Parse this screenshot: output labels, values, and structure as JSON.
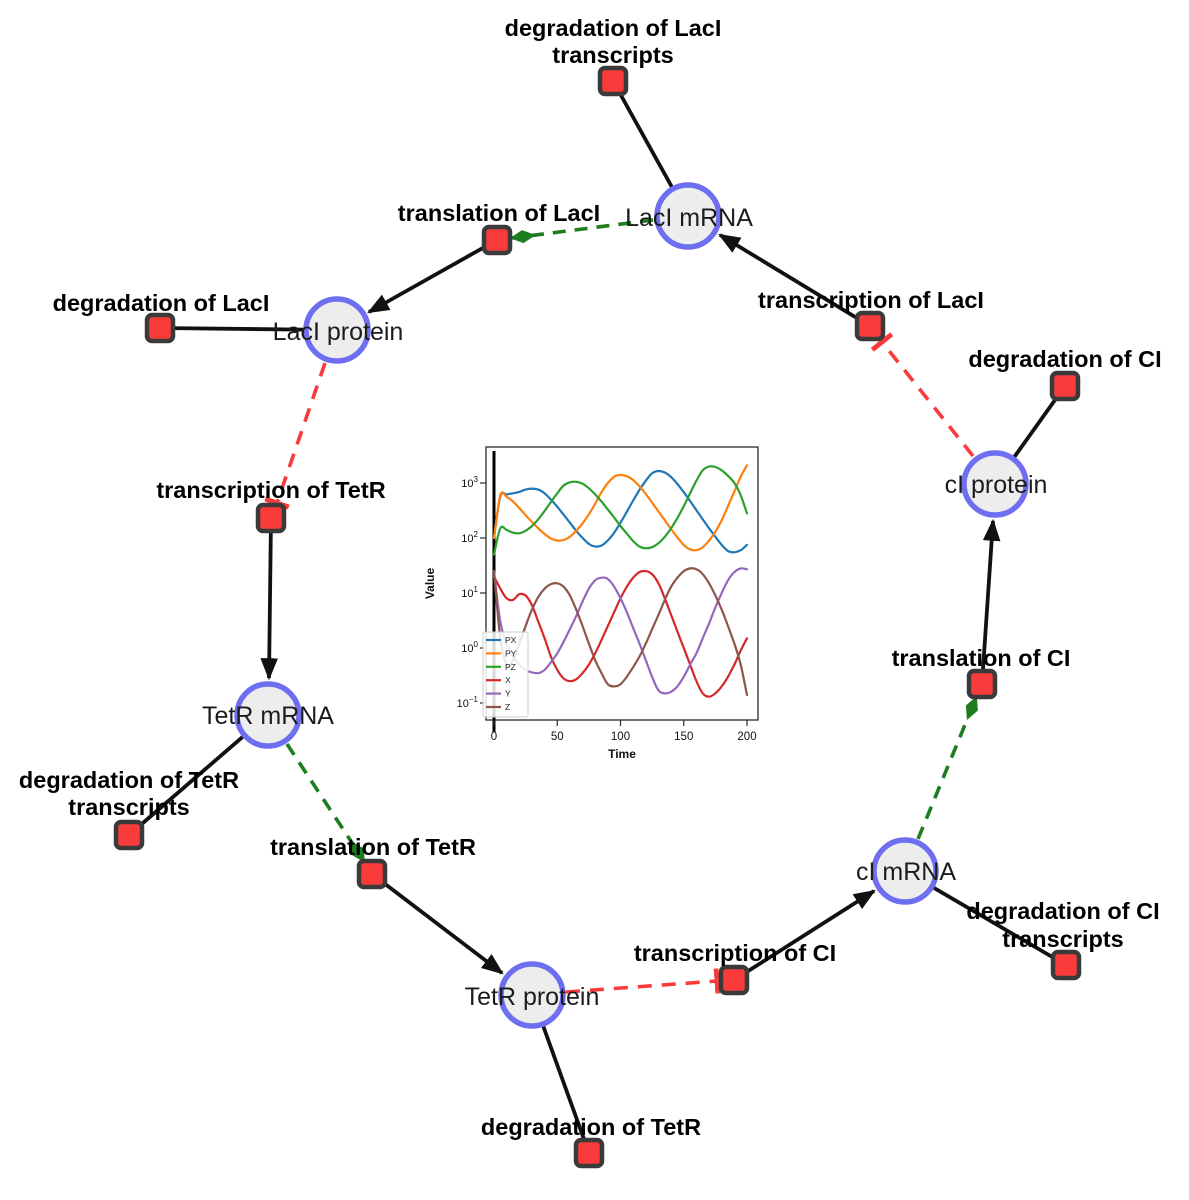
{
  "diagram": {
    "species": {
      "laci_mrna": "LacI mRNA",
      "laci_protein": "LacI protein",
      "tetr_mrna": "TetR mRNA",
      "tetr_protein": "TetR protein",
      "ci_mrna": "cI mRNA",
      "ci_protein": "cI protein"
    },
    "reactions": {
      "deg_laci_tx_1": "degradation of LacI",
      "deg_laci_tx_2": "transcripts",
      "translation_laci": "translation of LacI",
      "transcription_laci": "transcription of LacI",
      "deg_laci": "degradation of LacI",
      "deg_ci": "degradation of CI",
      "transcription_tetr": "transcription of TetR",
      "translation_ci": "translation of CI",
      "deg_tetr_tx_1": "degradation of TetR",
      "deg_tetr_tx_2": "transcripts",
      "translation_tetr": "translation of TetR",
      "deg_ci_tx_1": "degradation of CI",
      "deg_ci_tx_2": "transcripts",
      "transcription_ci": "transcription of CI",
      "deg_tetr": "degradation of TetR"
    },
    "colors": {
      "species_fill": "#ededed",
      "species_border": "#6e6ef0",
      "reaction_fill": "#f93a3a",
      "reaction_border": "#3a3a3a",
      "edge": "#111111",
      "activation": "#1e7d1e",
      "inhibition": "#f93a3a",
      "background": "#ffffff"
    }
  },
  "chart_data": {
    "type": "line",
    "title": "",
    "xlabel": "Time",
    "ylabel": "Value",
    "x_ticks": [
      0,
      50,
      100,
      150,
      200
    ],
    "xlim": [
      0,
      200
    ],
    "y_scale": "log",
    "y_tick_exponents": [
      -1,
      0,
      1,
      2,
      3
    ],
    "ylim": [
      0.1,
      4500
    ],
    "legend_position": "lower left",
    "grid": false,
    "event_line_x": 0,
    "x": [
      0,
      5,
      10,
      15,
      20,
      25,
      30,
      35,
      40,
      45,
      50,
      55,
      60,
      65,
      70,
      75,
      80,
      85,
      90,
      95,
      100,
      105,
      110,
      115,
      120,
      125,
      130,
      135,
      140,
      145,
      150,
      155,
      160,
      165,
      170,
      175,
      180,
      185,
      190,
      195,
      200
    ],
    "series": [
      {
        "name": "PX",
        "color": "#1f77b4",
        "values": [
          100,
          570,
          620,
          650,
          690,
          760,
          790,
          760,
          650,
          500,
          370,
          265,
          190,
          135,
          100,
          78,
          70,
          73,
          90,
          125,
          190,
          300,
          480,
          750,
          1100,
          1500,
          1650,
          1550,
          1280,
          960,
          680,
          470,
          320,
          220,
          150,
          105,
          75,
          58,
          55,
          60,
          75
        ]
      },
      {
        "name": "PY",
        "color": "#ff7f0e",
        "values": [
          100,
          600,
          560,
          460,
          350,
          260,
          195,
          150,
          118,
          98,
          90,
          92,
          105,
          135,
          185,
          270,
          420,
          680,
          1000,
          1300,
          1400,
          1330,
          1130,
          870,
          630,
          440,
          305,
          210,
          145,
          103,
          75,
          62,
          60,
          68,
          90,
          130,
          210,
          380,
          700,
          1300,
          2100
        ]
      },
      {
        "name": "PZ",
        "color": "#2ca02c",
        "values": [
          50,
          150,
          140,
          125,
          122,
          135,
          165,
          220,
          310,
          450,
          650,
          900,
          1030,
          1050,
          970,
          800,
          620,
          460,
          330,
          235,
          165,
          120,
          88,
          70,
          65,
          68,
          80,
          105,
          150,
          230,
          380,
          650,
          1100,
          1700,
          2000,
          1950,
          1700,
          1350,
          1000,
          600,
          280
        ]
      },
      {
        "name": "X",
        "color": "#d62728",
        "values": [
          20,
          12,
          8,
          7.5,
          9.5,
          9,
          6,
          3,
          1.5,
          0.7,
          0.4,
          0.28,
          0.25,
          0.27,
          0.35,
          0.5,
          0.8,
          1.4,
          2.5,
          4.5,
          8,
          13,
          19,
          24,
          25,
          22,
          15,
          8,
          4,
          2,
          1,
          0.5,
          0.25,
          0.15,
          0.13,
          0.15,
          0.2,
          0.3,
          0.5,
          0.9,
          1.5
        ]
      },
      {
        "name": "Y",
        "color": "#9467bd",
        "values": [
          25,
          3,
          1.2,
          0.7,
          0.5,
          0.4,
          0.36,
          0.35,
          0.4,
          0.55,
          0.8,
          1.3,
          2.2,
          3.8,
          7,
          12,
          17,
          19,
          18,
          13,
          8,
          4.5,
          2.3,
          1.2,
          0.6,
          0.3,
          0.17,
          0.15,
          0.16,
          0.2,
          0.3,
          0.5,
          0.8,
          1.5,
          2.8,
          5.5,
          10,
          17,
          24,
          28,
          27
        ]
      },
      {
        "name": "Z",
        "color": "#8c564b",
        "values": [
          25,
          1.5,
          0.5,
          0.6,
          1.2,
          2.5,
          5,
          8.5,
          12,
          14.5,
          15,
          13,
          9,
          5,
          2.5,
          1.2,
          0.6,
          0.35,
          0.22,
          0.2,
          0.22,
          0.3,
          0.45,
          0.7,
          1.2,
          2.2,
          4,
          7.5,
          13,
          19,
          25,
          28,
          27,
          22,
          15,
          9,
          5,
          2.5,
          1.2,
          0.5,
          0.14
        ]
      }
    ]
  }
}
